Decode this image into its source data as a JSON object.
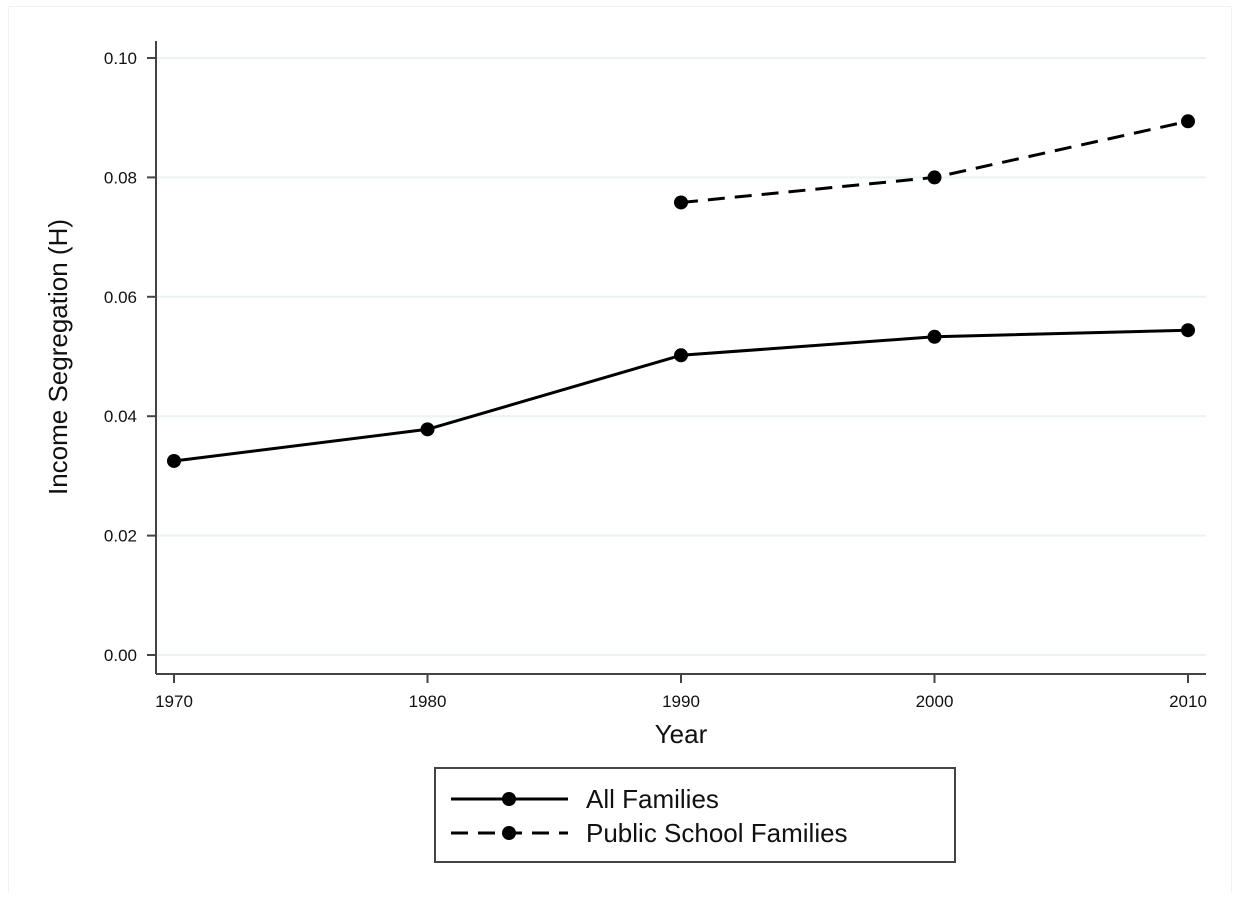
{
  "chart_data": {
    "type": "line",
    "title": "",
    "xlabel": "Year",
    "ylabel": "Income Segregation (H)",
    "x": [
      1970,
      1980,
      1990,
      2000,
      2010
    ],
    "xlim": [
      1970,
      2010
    ],
    "ylim": [
      0,
      0.1
    ],
    "x_ticks": [
      "1970",
      "1980",
      "1990",
      "2000",
      "2010"
    ],
    "y_ticks": [
      "0.00",
      "0.02",
      "0.04",
      "0.06",
      "0.08",
      "0.10"
    ],
    "y_tick_values": [
      0,
      0.02,
      0.04,
      0.06,
      0.08,
      0.1
    ],
    "grid": true,
    "legend_position": "bottom-center",
    "series": [
      {
        "name": "All Families",
        "style": "solid",
        "marker": "circle",
        "color": "#000000",
        "x": [
          1970,
          1980,
          1990,
          2000,
          2010
        ],
        "values": [
          0.0325,
          0.0378,
          0.0502,
          0.0533,
          0.0544
        ]
      },
      {
        "name": "Public School Families",
        "style": "dashed",
        "marker": "circle",
        "color": "#000000",
        "x": [
          1990,
          2000,
          2010
        ],
        "values": [
          0.0758,
          0.08,
          0.0894
        ]
      }
    ],
    "colors": {
      "grid": "#eaf2f3",
      "axis": "#444444",
      "frame": "#edf3f5",
      "legend_border": "#444444"
    }
  }
}
